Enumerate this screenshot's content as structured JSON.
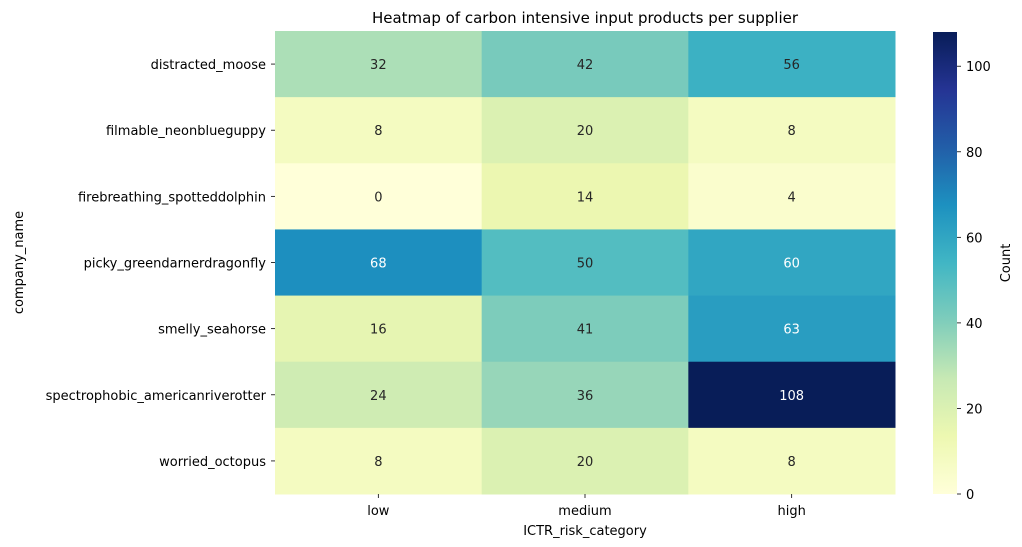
{
  "chart_data": {
    "type": "heatmap",
    "title": "Heatmap of carbon intensive input products per supplier",
    "xlabel": "ICTR_risk_category",
    "ylabel": "company_name",
    "x_categories": [
      "low",
      "medium",
      "high"
    ],
    "y_categories": [
      "distracted_moose",
      "filmable_neonblueguppy",
      "firebreathing_spotteddolphin",
      "picky_greendarnerdragonfly",
      "smelly_seahorse",
      "spectrophobic_americanriverotter",
      "worried_octopus"
    ],
    "values": [
      [
        32,
        42,
        56
      ],
      [
        8,
        20,
        8
      ],
      [
        0,
        14,
        4
      ],
      [
        68,
        50,
        60
      ],
      [
        16,
        41,
        63
      ],
      [
        24,
        36,
        108
      ],
      [
        8,
        20,
        8
      ]
    ],
    "colorbar": {
      "label": "Count",
      "colormap": "YlGnBu",
      "range": [
        0,
        108
      ],
      "ticks": [
        0,
        20,
        40,
        60,
        80,
        100
      ]
    }
  }
}
